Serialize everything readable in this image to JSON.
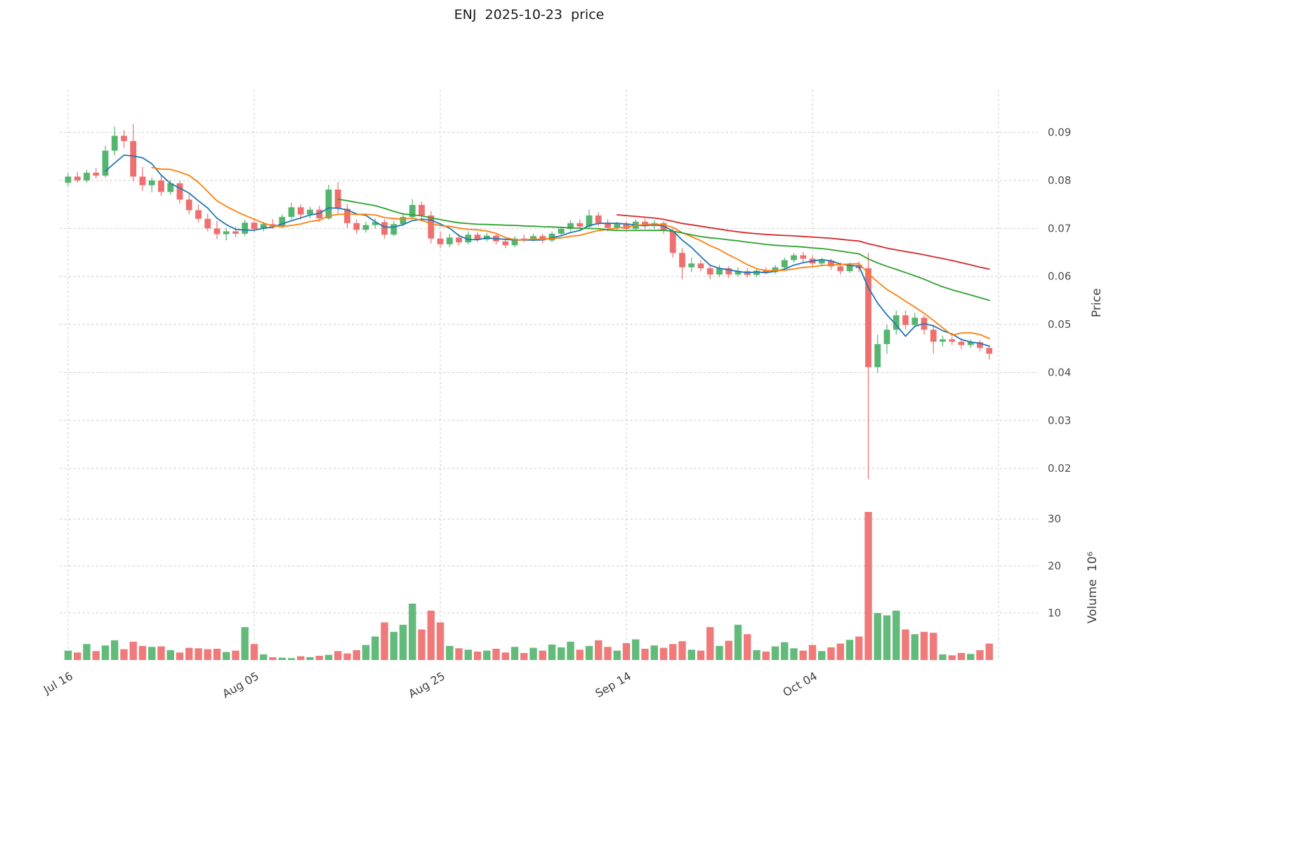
{
  "title": "ENJ  2025-10-23  price",
  "axes": {
    "price_label": "Price",
    "volume_label": "Volume  10⁶",
    "price_ticks": [
      0.09,
      0.08,
      0.07,
      0.06,
      0.05,
      0.04,
      0.03,
      0.02
    ],
    "volume_ticks": [
      10,
      20,
      30
    ],
    "x_ticks": [
      {
        "index": 0,
        "label": "Jul 16"
      },
      {
        "index": 20,
        "label": "Aug 05"
      },
      {
        "index": 40,
        "label": "Aug 25"
      },
      {
        "index": 60,
        "label": "Sep 14"
      },
      {
        "index": 80,
        "label": "Oct 04"
      },
      {
        "index": 100,
        "label": ""
      }
    ]
  },
  "colors": {
    "up": "#55b56f",
    "down": "#ef6f6f",
    "grid": "#c9c9c9",
    "tick_text": "#4d4d4d",
    "ma": [
      "#1f77b4",
      "#ff7f0e",
      "#2ca02c",
      "#d62728"
    ]
  },
  "chart_data": {
    "type": "candlestick",
    "title": "ENJ  2025-10-23  price",
    "symbol": "ENJ",
    "as_of_date": "2025-10-23",
    "ylabel": "Price",
    "ylabel2": "Volume  10⁶",
    "price_axis_ticks": [
      0.09,
      0.08,
      0.07,
      0.06,
      0.05,
      0.04,
      0.03,
      0.02
    ],
    "volume_axis_ticks_millions": [
      10,
      20,
      30
    ],
    "grid": true,
    "legend_position": "none",
    "moving_averages": [
      {
        "period": 5,
        "color": "#1f77b4"
      },
      {
        "period": 10,
        "color": "#ff7f0e"
      },
      {
        "period": 30,
        "color": "#2ca02c"
      },
      {
        "period": 60,
        "color": "#d62728"
      }
    ],
    "columns": [
      "date",
      "open",
      "high",
      "low",
      "close",
      "volume_millions"
    ],
    "rows": [
      [
        "2025-07-16",
        0.0795,
        0.0815,
        0.0788,
        0.0808,
        2.0
      ],
      [
        "2025-07-17",
        0.0808,
        0.0818,
        0.0795,
        0.08,
        1.6
      ],
      [
        "2025-07-18",
        0.08,
        0.0822,
        0.0795,
        0.0816,
        3.4
      ],
      [
        "2025-07-19",
        0.0816,
        0.0826,
        0.0804,
        0.081,
        1.9
      ],
      [
        "2025-07-20",
        0.081,
        0.0872,
        0.0806,
        0.0862,
        3.1
      ],
      [
        "2025-07-21",
        0.0862,
        0.0912,
        0.0852,
        0.0893,
        4.2
      ],
      [
        "2025-07-22",
        0.0893,
        0.0905,
        0.0868,
        0.0882,
        2.3
      ],
      [
        "2025-07-23",
        0.0882,
        0.0918,
        0.0798,
        0.0808,
        3.9
      ],
      [
        "2025-07-24",
        0.0808,
        0.0828,
        0.0778,
        0.079,
        3.0
      ],
      [
        "2025-07-25",
        0.079,
        0.0806,
        0.0775,
        0.08,
        2.8
      ],
      [
        "2025-07-26",
        0.08,
        0.081,
        0.0768,
        0.0776,
        2.9
      ],
      [
        "2025-07-27",
        0.0776,
        0.08,
        0.077,
        0.0794,
        2.1
      ],
      [
        "2025-07-28",
        0.0794,
        0.0799,
        0.0752,
        0.076,
        1.6
      ],
      [
        "2025-07-29",
        0.076,
        0.0771,
        0.0729,
        0.0738,
        2.6
      ],
      [
        "2025-07-30",
        0.0738,
        0.075,
        0.0713,
        0.072,
        2.5
      ],
      [
        "2025-07-31",
        0.072,
        0.0731,
        0.0694,
        0.07,
        2.3
      ],
      [
        "2025-08-01",
        0.07,
        0.0716,
        0.0678,
        0.0688,
        2.4
      ],
      [
        "2025-08-02",
        0.0688,
        0.0701,
        0.0675,
        0.0694,
        1.7
      ],
      [
        "2025-08-03",
        0.0694,
        0.0704,
        0.0682,
        0.0689,
        2.0
      ],
      [
        "2025-08-04",
        0.0689,
        0.0718,
        0.0684,
        0.0712,
        7.0
      ],
      [
        "2025-08-05",
        0.0712,
        0.0719,
        0.0693,
        0.0699,
        3.4
      ],
      [
        "2025-08-06",
        0.0699,
        0.0714,
        0.0694,
        0.0709,
        1.2
      ],
      [
        "2025-08-07",
        0.0709,
        0.0719,
        0.0699,
        0.0704,
        0.6
      ],
      [
        "2025-08-08",
        0.0704,
        0.0729,
        0.07,
        0.0724,
        0.5
      ],
      [
        "2025-08-09",
        0.0724,
        0.0754,
        0.0719,
        0.0744,
        0.4
      ],
      [
        "2025-08-10",
        0.0744,
        0.075,
        0.0719,
        0.0729,
        0.8
      ],
      [
        "2025-08-11",
        0.0729,
        0.0745,
        0.0721,
        0.0739,
        0.6
      ],
      [
        "2025-08-12",
        0.0739,
        0.0747,
        0.0714,
        0.0721,
        0.9
      ],
      [
        "2025-08-13",
        0.0721,
        0.0791,
        0.0718,
        0.0781,
        1.1
      ],
      [
        "2025-08-14",
        0.0781,
        0.0796,
        0.0731,
        0.0741,
        1.9
      ],
      [
        "2025-08-15",
        0.0741,
        0.0751,
        0.0701,
        0.0711,
        1.4
      ],
      [
        "2025-08-16",
        0.0711,
        0.0719,
        0.0689,
        0.0697,
        2.1
      ],
      [
        "2025-08-17",
        0.0697,
        0.0714,
        0.0691,
        0.0707,
        3.2
      ],
      [
        "2025-08-18",
        0.0707,
        0.0721,
        0.0699,
        0.0713,
        5.0
      ],
      [
        "2025-08-19",
        0.0713,
        0.0719,
        0.0679,
        0.0687,
        8.0
      ],
      [
        "2025-08-20",
        0.0687,
        0.0716,
        0.0684,
        0.0709,
        6.0
      ],
      [
        "2025-08-21",
        0.0709,
        0.0731,
        0.0704,
        0.0724,
        7.5
      ],
      [
        "2025-08-22",
        0.0724,
        0.0761,
        0.0719,
        0.0749,
        12.0
      ],
      [
        "2025-08-23",
        0.0749,
        0.0756,
        0.0719,
        0.0727,
        6.5
      ],
      [
        "2025-08-24",
        0.0727,
        0.0736,
        0.0669,
        0.0679,
        10.5
      ],
      [
        "2025-08-25",
        0.0679,
        0.0694,
        0.0659,
        0.0667,
        8.0
      ],
      [
        "2025-08-26",
        0.0667,
        0.0689,
        0.0661,
        0.0681,
        3.0
      ],
      [
        "2025-08-27",
        0.0681,
        0.0689,
        0.0664,
        0.0671,
        2.5
      ],
      [
        "2025-08-28",
        0.0671,
        0.0694,
        0.0667,
        0.0687,
        2.2
      ],
      [
        "2025-08-29",
        0.0687,
        0.0692,
        0.0671,
        0.0677,
        1.8
      ],
      [
        "2025-08-30",
        0.0677,
        0.0691,
        0.0673,
        0.0685,
        2.0
      ],
      [
        "2025-08-31",
        0.0685,
        0.0689,
        0.0667,
        0.0673,
        2.4
      ],
      [
        "2025-09-01",
        0.0673,
        0.0679,
        0.0659,
        0.0665,
        1.6
      ],
      [
        "2025-09-02",
        0.0665,
        0.0684,
        0.0661,
        0.0679,
        2.8
      ],
      [
        "2025-09-03",
        0.0679,
        0.0687,
        0.0671,
        0.0677,
        1.5
      ],
      [
        "2025-09-04",
        0.0677,
        0.0689,
        0.0673,
        0.0684,
        2.6
      ],
      [
        "2025-09-05",
        0.0684,
        0.0689,
        0.0669,
        0.0675,
        2.0
      ],
      [
        "2025-09-06",
        0.0675,
        0.0694,
        0.0671,
        0.0689,
        3.3
      ],
      [
        "2025-09-07",
        0.0689,
        0.0704,
        0.0684,
        0.0699,
        2.7
      ],
      [
        "2025-09-08",
        0.0699,
        0.0717,
        0.0694,
        0.0711,
        3.9
      ],
      [
        "2025-09-09",
        0.0711,
        0.0719,
        0.0697,
        0.0704,
        2.2
      ],
      [
        "2025-09-10",
        0.0704,
        0.0739,
        0.0699,
        0.0727,
        3.0
      ],
      [
        "2025-09-11",
        0.0727,
        0.0734,
        0.0704,
        0.0711,
        4.2
      ],
      [
        "2025-09-12",
        0.0711,
        0.0719,
        0.0694,
        0.0701,
        2.8
      ],
      [
        "2025-09-13",
        0.0701,
        0.0714,
        0.0697,
        0.0709,
        2.0
      ],
      [
        "2025-09-14",
        0.0709,
        0.0715,
        0.0694,
        0.0699,
        3.6
      ],
      [
        "2025-09-15",
        0.0699,
        0.0719,
        0.0695,
        0.0714,
        4.4
      ],
      [
        "2025-09-16",
        0.0714,
        0.0721,
        0.0699,
        0.0705,
        2.4
      ],
      [
        "2025-09-17",
        0.0705,
        0.0717,
        0.0699,
        0.0711,
        3.1
      ],
      [
        "2025-09-18",
        0.0711,
        0.0715,
        0.0689,
        0.0695,
        2.6
      ],
      [
        "2025-09-19",
        0.0695,
        0.0699,
        0.0639,
        0.0649,
        3.4
      ],
      [
        "2025-09-20",
        0.0649,
        0.0659,
        0.0594,
        0.0619,
        4.0
      ],
      [
        "2025-09-21",
        0.0619,
        0.0639,
        0.0609,
        0.0627,
        2.2
      ],
      [
        "2025-09-22",
        0.0627,
        0.0634,
        0.0611,
        0.0617,
        2.0
      ],
      [
        "2025-09-23",
        0.0617,
        0.0624,
        0.0594,
        0.0604,
        7.0
      ],
      [
        "2025-09-24",
        0.0604,
        0.0624,
        0.0599,
        0.0617,
        3.0
      ],
      [
        "2025-09-25",
        0.0617,
        0.0621,
        0.0597,
        0.0604,
        4.1
      ],
      [
        "2025-09-26",
        0.0604,
        0.0619,
        0.0599,
        0.0611,
        7.5
      ],
      [
        "2025-09-27",
        0.0611,
        0.0617,
        0.0597,
        0.0603,
        5.5
      ],
      [
        "2025-09-28",
        0.0603,
        0.0617,
        0.0599,
        0.0612,
        2.1
      ],
      [
        "2025-09-29",
        0.0612,
        0.0619,
        0.0604,
        0.0609,
        1.8
      ],
      [
        "2025-09-30",
        0.0609,
        0.0624,
        0.0605,
        0.0619,
        2.9
      ],
      [
        "2025-10-01",
        0.0619,
        0.0639,
        0.0614,
        0.0634,
        3.8
      ],
      [
        "2025-10-02",
        0.0634,
        0.0649,
        0.0629,
        0.0644,
        2.5
      ],
      [
        "2025-10-03",
        0.0644,
        0.0651,
        0.0629,
        0.0637,
        2.0
      ],
      [
        "2025-10-04",
        0.0637,
        0.0644,
        0.0619,
        0.0627,
        3.2
      ],
      [
        "2025-10-05",
        0.0627,
        0.0639,
        0.0621,
        0.0633,
        1.9
      ],
      [
        "2025-10-06",
        0.0633,
        0.0637,
        0.0614,
        0.0621,
        2.7
      ],
      [
        "2025-10-07",
        0.0621,
        0.0629,
        0.0604,
        0.0611,
        3.5
      ],
      [
        "2025-10-08",
        0.0611,
        0.0629,
        0.0607,
        0.0624,
        4.3
      ],
      [
        "2025-10-09",
        0.0624,
        0.0631,
        0.0609,
        0.0617,
        5.0
      ],
      [
        "2025-10-10",
        0.0617,
        0.0649,
        0.0178,
        0.0411,
        31.5
      ],
      [
        "2025-10-11",
        0.0411,
        0.0479,
        0.0399,
        0.0459,
        10.0
      ],
      [
        "2025-10-12",
        0.0459,
        0.0499,
        0.0439,
        0.0489,
        9.5
      ],
      [
        "2025-10-13",
        0.0489,
        0.0529,
        0.0479,
        0.0519,
        10.5
      ],
      [
        "2025-10-14",
        0.0519,
        0.0529,
        0.0489,
        0.0499,
        6.5
      ],
      [
        "2025-10-15",
        0.0499,
        0.0524,
        0.0494,
        0.0514,
        5.5
      ],
      [
        "2025-10-16",
        0.0514,
        0.0519,
        0.0479,
        0.0489,
        6.0
      ],
      [
        "2025-10-17",
        0.0489,
        0.0497,
        0.0439,
        0.0464,
        5.8
      ],
      [
        "2025-10-18",
        0.0464,
        0.0477,
        0.0454,
        0.0469,
        1.2
      ],
      [
        "2025-10-19",
        0.0469,
        0.0475,
        0.0457,
        0.0464,
        1.0
      ],
      [
        "2025-10-20",
        0.0464,
        0.0471,
        0.0449,
        0.0457,
        1.5
      ],
      [
        "2025-10-21",
        0.0457,
        0.0469,
        0.0451,
        0.0463,
        1.3
      ],
      [
        "2025-10-22",
        0.0463,
        0.0467,
        0.0444,
        0.0451,
        2.1
      ],
      [
        "2025-10-23",
        0.0451,
        0.0457,
        0.0427,
        0.0439,
        3.5
      ]
    ]
  }
}
